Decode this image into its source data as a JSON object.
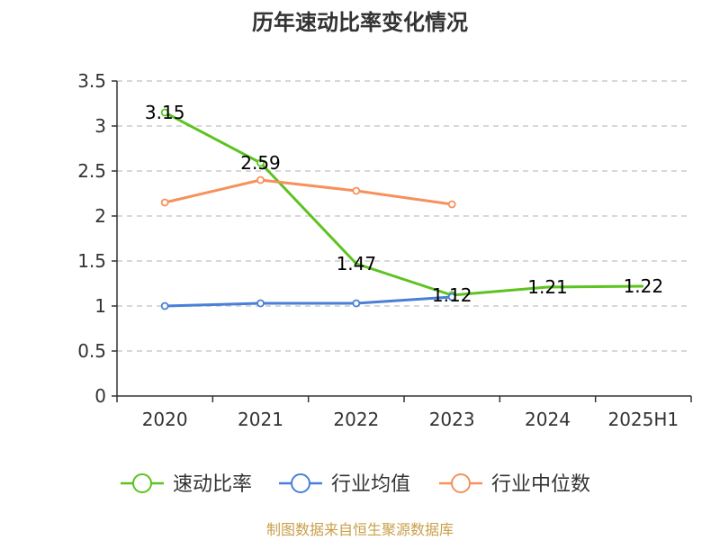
{
  "chart_data": {
    "type": "line",
    "title": "历年速动比率变化情况",
    "categories": [
      "2020",
      "2021",
      "2022",
      "2023",
      "2024",
      "2025H1"
    ],
    "ylim": [
      0,
      3.5
    ],
    "yticks": [
      "0",
      "0.5",
      "1",
      "1.5",
      "2",
      "2.5",
      "3",
      "3.5"
    ],
    "grid": true,
    "legend_position": "bottom",
    "series": [
      {
        "name": "速动比率",
        "color": "#5cc31f",
        "values": [
          3.15,
          2.59,
          1.47,
          1.12,
          1.21,
          1.22
        ],
        "labels": [
          "3.15",
          "2.59",
          "1.47",
          "1.12",
          "1.21",
          "1.22"
        ],
        "markers": [
          true,
          true,
          false,
          true,
          false,
          false
        ]
      },
      {
        "name": "行业均值",
        "color": "#4a7fd8",
        "values": [
          1.0,
          1.03,
          1.03,
          1.1,
          null,
          null
        ],
        "markers": [
          true,
          true,
          true,
          true,
          false,
          false
        ]
      },
      {
        "name": "行业中位数",
        "color": "#f5915c",
        "values": [
          2.15,
          2.4,
          2.28,
          2.13,
          null,
          null
        ],
        "markers": [
          true,
          true,
          true,
          true,
          false,
          false
        ]
      }
    ],
    "source": "制图数据来自恒生聚源数据库"
  }
}
